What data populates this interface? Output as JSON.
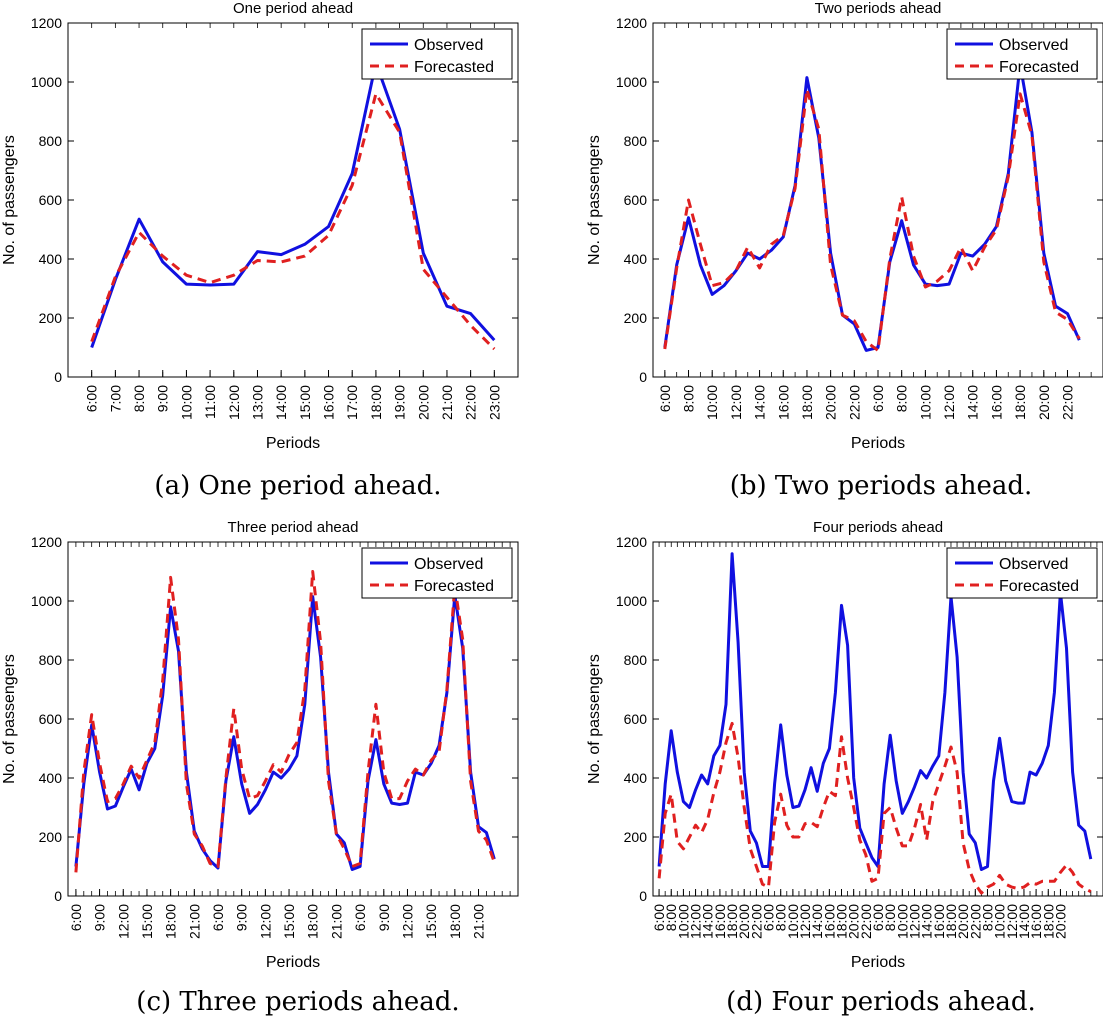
{
  "colors": {
    "observed": "#1010e0",
    "forecasted": "#e02020",
    "axes": "#000000"
  },
  "chart_data": [
    {
      "type": "line",
      "title": "One period ahead",
      "caption": "(a) One period ahead.",
      "xlabel": "Periods",
      "ylabel": "No. of passengers",
      "ylim": [
        0,
        1200
      ],
      "yticks": [
        "0",
        "200",
        "400",
        "600",
        "800",
        "1000",
        "1200"
      ],
      "xticks": [
        "6:00",
        "7:00",
        "8:00",
        "9:00",
        "10:00",
        "11:00",
        "12:00",
        "13:00",
        "14:00",
        "15:00",
        "16:00",
        "17:00",
        "18:00",
        "19:00",
        "20:00",
        "21:00",
        "22:00",
        "23:00"
      ],
      "x_tick_start": 1,
      "xlim": [
        0,
        19
      ],
      "legend": "top-right",
      "series": [
        {
          "name": "Observed",
          "style": "solid",
          "values": [
            100,
            330,
            535,
            390,
            315,
            312,
            315,
            425,
            415,
            450,
            510,
            690,
            1065,
            840,
            420,
            240,
            215,
            125
          ]
        },
        {
          "name": "Forecasted",
          "style": "dashed",
          "values": [
            120,
            340,
            490,
            410,
            345,
            320,
            345,
            395,
            390,
            410,
            480,
            650,
            960,
            830,
            365,
            270,
            175,
            95
          ]
        }
      ]
    },
    {
      "type": "line",
      "title": "Two periods ahead",
      "caption": "(b) Two periods ahead.",
      "xlabel": "Periods",
      "ylabel": "No. of passengers",
      "ylim": [
        0,
        1200
      ],
      "yticks": [
        "0",
        "200",
        "400",
        "600",
        "800",
        "1000",
        "1200"
      ],
      "xticks": [
        "6:00",
        "8:00",
        "10:00",
        "12:00",
        "14:00",
        "16:00",
        "18:00",
        "20:00",
        "22:00",
        "6:00",
        "8:00",
        "10:00",
        "12:00",
        "14:00",
        "16:00",
        "18:00",
        "20:00",
        "22:00"
      ],
      "x_tick_start": 1,
      "x_tick_step": 2,
      "xlim": [
        0,
        38
      ],
      "legend": "top-right",
      "series": [
        {
          "name": "Observed",
          "style": "solid",
          "values": [
            100,
            380,
            540,
            380,
            280,
            310,
            360,
            420,
            400,
            430,
            475,
            650,
            1015,
            810,
            420,
            210,
            180,
            90,
            100,
            390,
            530,
            380,
            315,
            310,
            315,
            420,
            410,
            450,
            510,
            690,
            1060,
            830,
            420,
            240,
            215,
            125
          ]
        },
        {
          "name": "Forecasted",
          "style": "dashed",
          "values": [
            95,
            370,
            600,
            450,
            310,
            320,
            360,
            440,
            370,
            450,
            480,
            640,
            975,
            840,
            380,
            210,
            190,
            120,
            90,
            400,
            610,
            410,
            305,
            325,
            360,
            440,
            360,
            440,
            500,
            680,
            960,
            820,
            390,
            220,
            195,
            130
          ]
        }
      ]
    },
    {
      "type": "line",
      "title": "Three period ahead",
      "caption": "(c) Three periods ahead.",
      "xlabel": "Periods",
      "ylabel": "No. of passengers",
      "ylim": [
        0,
        1200
      ],
      "yticks": [
        "0",
        "200",
        "400",
        "600",
        "800",
        "1000",
        "1200"
      ],
      "xticks": [
        "6:00",
        "9:00",
        "12:00",
        "15:00",
        "18:00",
        "21:00",
        "6:00",
        "9:00",
        "12:00",
        "15:00",
        "18:00",
        "21:00",
        "6:00",
        "9:00",
        "12:00",
        "15:00",
        "18:00",
        "21:00"
      ],
      "x_tick_start": 1,
      "x_tick_step": 3,
      "xlim": [
        0,
        57
      ],
      "legend": "top-right",
      "series": [
        {
          "name": "Observed",
          "style": "solid",
          "values": [
            100,
            380,
            580,
            420,
            295,
            305,
            370,
            430,
            360,
            450,
            500,
            680,
            980,
            830,
            420,
            220,
            160,
            120,
            95,
            390,
            540,
            380,
            280,
            310,
            360,
            420,
            400,
            430,
            475,
            650,
            1015,
            810,
            420,
            210,
            180,
            90,
            100,
            390,
            530,
            380,
            315,
            310,
            315,
            420,
            410,
            450,
            510,
            690,
            1020,
            840,
            420,
            235,
            215,
            125
          ]
        },
        {
          "name": "Forecasted",
          "style": "dashed",
          "values": [
            80,
            420,
            615,
            450,
            320,
            330,
            380,
            440,
            400,
            460,
            520,
            730,
            1080,
            870,
            380,
            210,
            170,
            110,
            100,
            400,
            635,
            430,
            330,
            340,
            390,
            445,
            420,
            480,
            520,
            700,
            1100,
            860,
            390,
            210,
            160,
            100,
            110,
            420,
            650,
            420,
            330,
            330,
            390,
            430,
            410,
            460,
            490,
            700,
            1050,
            870,
            390,
            220,
            190,
            115
          ]
        }
      ]
    },
    {
      "type": "line",
      "title": "Four periods ahead",
      "caption": "(d) Four periods ahead.",
      "xlabel": "Periods",
      "ylabel": "No. of passengers",
      "ylim": [
        0,
        1200
      ],
      "yticks": [
        "0",
        "200",
        "400",
        "600",
        "800",
        "1000",
        "1200"
      ],
      "xticks": [
        "6:00",
        "8:00",
        "10:00",
        "12:00",
        "14:00",
        "16:00",
        "18:00",
        "20:00",
        "22:00",
        "6:00",
        "8:00",
        "10:00",
        "12:00",
        "14:00",
        "16:00",
        "18:00",
        "20:00",
        "22:00",
        "6:00",
        "8:00",
        "10:00",
        "12:00",
        "14:00",
        "16:00",
        "18:00",
        "20:00",
        "22:00",
        "8:00",
        "10:00",
        "12:00",
        "14:00",
        "16:00",
        "18:00",
        "20:00"
      ],
      "x_tick_start": 1,
      "x_tick_step": 2,
      "xlim": [
        0,
        74
      ],
      "legend": "top-right",
      "series": [
        {
          "name": "Observed",
          "style": "solid",
          "values": [
            100,
            380,
            560,
            420,
            320,
            300,
            360,
            410,
            380,
            475,
            510,
            650,
            1160,
            860,
            420,
            220,
            180,
            100,
            100,
            380,
            580,
            410,
            300,
            305,
            360,
            435,
            355,
            450,
            500,
            690,
            985,
            850,
            400,
            230,
            180,
            130,
            100,
            380,
            545,
            390,
            280,
            320,
            370,
            425,
            400,
            440,
            475,
            690,
            1015,
            810,
            420,
            210,
            180,
            90,
            100,
            390,
            535,
            390,
            320,
            315,
            315,
            420,
            410,
            450,
            510,
            690,
            1030,
            840,
            420,
            240,
            220,
            125
          ]
        },
        {
          "name": "Forecasted",
          "style": "dashed",
          "values": [
            60,
            280,
            345,
            185,
            160,
            200,
            240,
            215,
            260,
            350,
            420,
            520,
            585,
            470,
            300,
            160,
            100,
            40,
            30,
            250,
            345,
            240,
            200,
            200,
            245,
            250,
            235,
            300,
            355,
            340,
            540,
            400,
            300,
            190,
            140,
            50,
            60,
            280,
            300,
            230,
            170,
            170,
            230,
            310,
            190,
            320,
            380,
            440,
            505,
            420,
            180,
            90,
            40,
            10,
            30,
            40,
            70,
            40,
            30,
            25,
            30,
            45,
            40,
            50,
            50,
            50,
            80,
            105,
            80,
            40,
            25,
            15
          ]
        }
      ]
    }
  ]
}
